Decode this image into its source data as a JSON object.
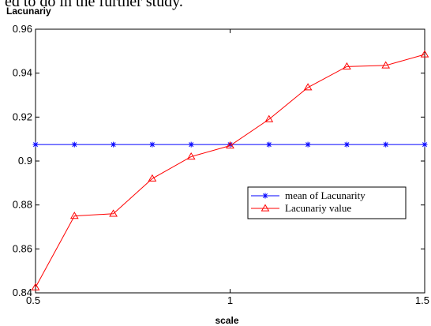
{
  "page": {
    "top_text": "ed to do in the further study."
  },
  "chart_data": {
    "type": "line",
    "ylabel": "Lacunariy",
    "xlabel": "scale",
    "xlim": [
      0.5,
      1.5
    ],
    "ylim": [
      0.84,
      0.96
    ],
    "x_ticks": [
      0.5,
      1,
      1.5
    ],
    "x_tick_labels": [
      "0.5",
      "1",
      "1.5"
    ],
    "y_ticks": [
      0.84,
      0.86,
      0.88,
      0.9,
      0.92,
      0.94,
      0.96
    ],
    "y_tick_labels": [
      "0.84",
      "0.86",
      "0.88",
      "0.9",
      "0.92",
      "0.94",
      "0.96"
    ],
    "grid": false,
    "legend_position": "center-right",
    "x": [
      0.5,
      0.6,
      0.7,
      0.8,
      0.9,
      1.0,
      1.1,
      1.2,
      1.3,
      1.4,
      1.5
    ],
    "series": [
      {
        "name": "mean of  Lacunarity",
        "color": "#0000ff",
        "marker": "asterisk",
        "values": [
          0.9075,
          0.9075,
          0.9075,
          0.9075,
          0.9075,
          0.9075,
          0.9075,
          0.9075,
          0.9075,
          0.9075,
          0.9075
        ]
      },
      {
        "name": "Lacunariy value",
        "color": "#ff0000",
        "marker": "triangle",
        "values": [
          0.8425,
          0.875,
          0.876,
          0.892,
          0.902,
          0.907,
          0.919,
          0.9335,
          0.943,
          0.9435,
          0.9485
        ]
      }
    ]
  }
}
